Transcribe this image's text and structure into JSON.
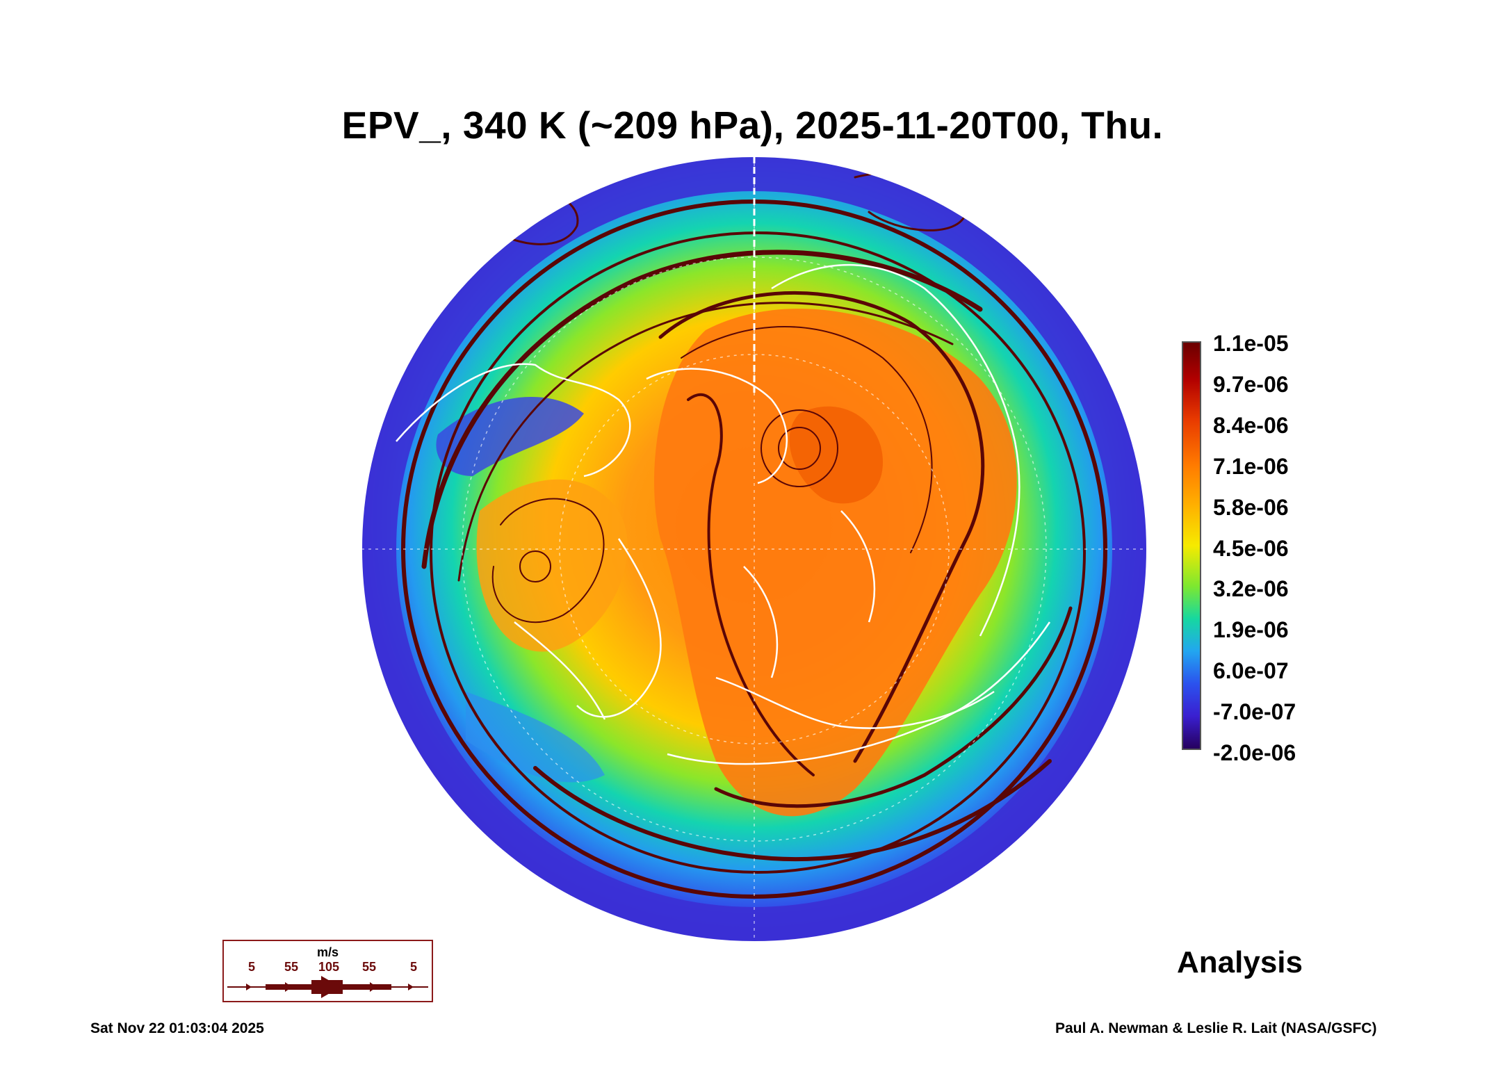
{
  "title": "EPV_, 340 K (~209 hPa), 2025-11-20T00, Thu.",
  "colorbar": {
    "labels": [
      "1.1e-05",
      "9.7e-06",
      "8.4e-06",
      "7.1e-06",
      "5.8e-06",
      "4.5e-06",
      "3.2e-06",
      "1.9e-06",
      "6.0e-07",
      "-7.0e-07",
      "-2.0e-06"
    ],
    "colors": [
      "#6b0000",
      "#b10000",
      "#e83a00",
      "#ff7a00",
      "#ffb000",
      "#f6ea00",
      "#7de830",
      "#16d8a0",
      "#22a6f0",
      "#2b52ee",
      "#3a1fd0",
      "#26005e"
    ]
  },
  "wind_legend": {
    "unit": "m/s",
    "speeds": [
      "5",
      "55",
      "105",
      "55",
      "5"
    ],
    "color": "#6b0a0a"
  },
  "label": "Analysis",
  "timestamp": "Sat Nov 22 01:03:04 2025",
  "credit": "Paul A. Newman & Leslie R. Lait (NASA/GSFC)"
}
